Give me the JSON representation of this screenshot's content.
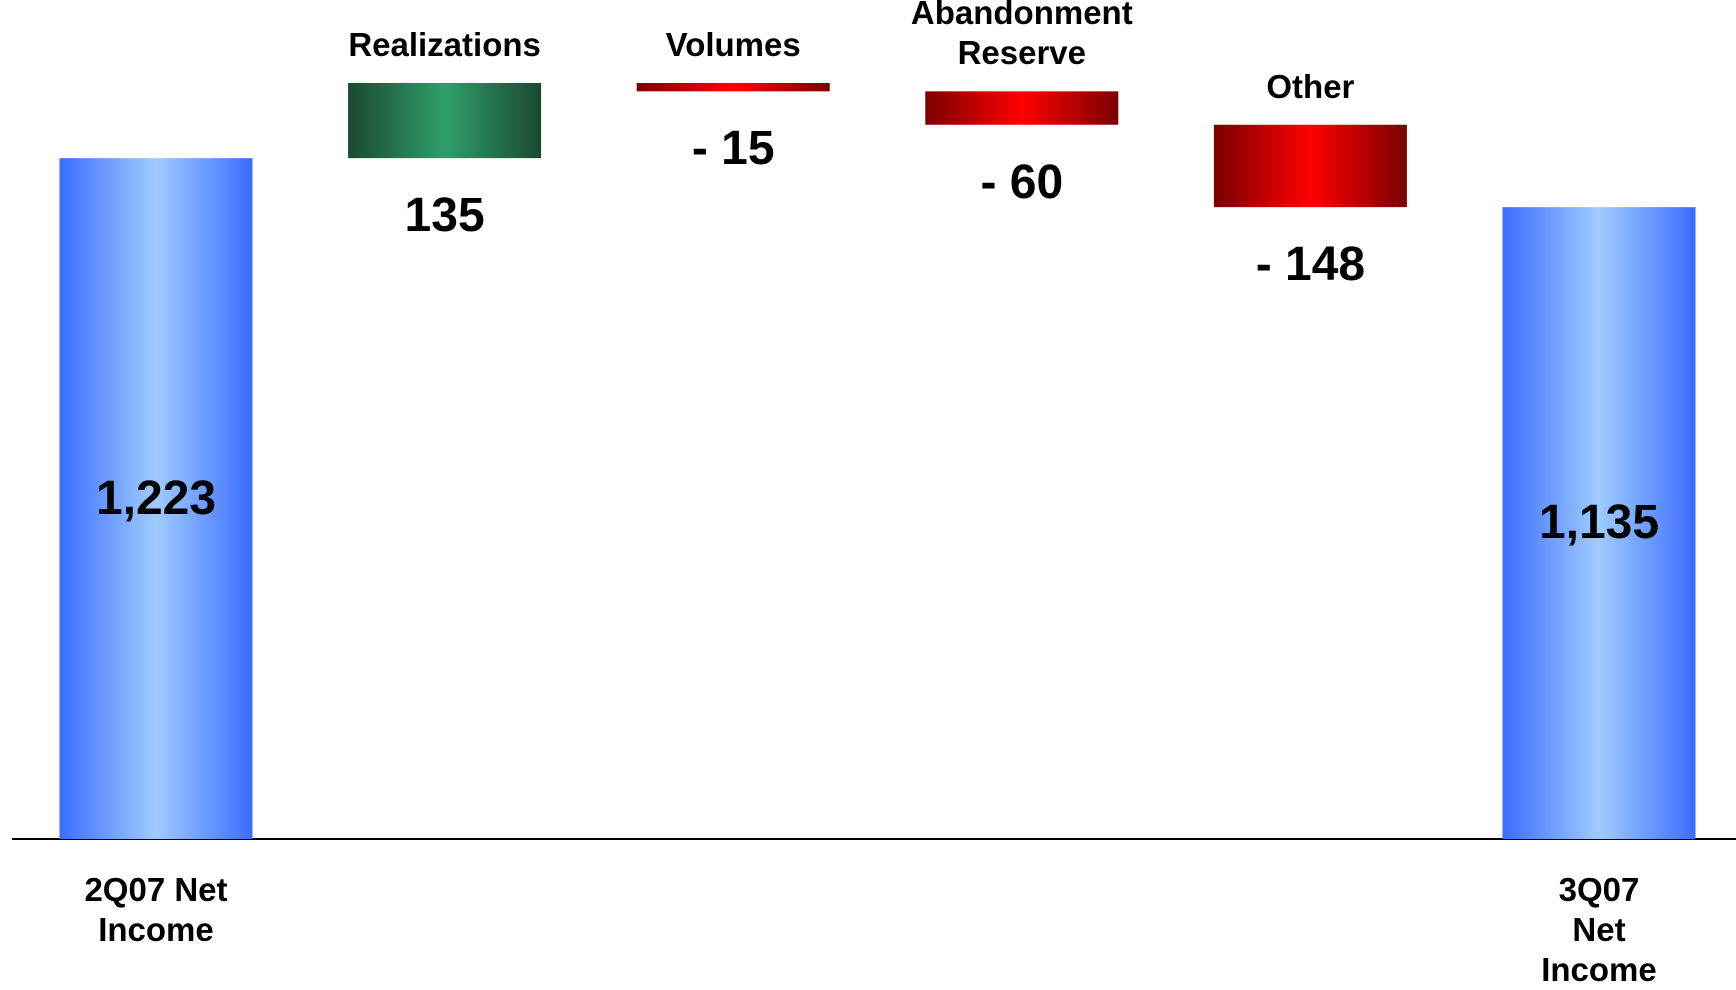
{
  "chart_data": {
    "type": "waterfall",
    "categories": [
      "2Q07 Net Income",
      "Realizations",
      "Volumes",
      "Abandonment Reserve",
      "Other",
      "3Q07 Net Income"
    ],
    "values": [
      1223,
      135,
      -15,
      -60,
      -148,
      1135
    ],
    "value_labels": [
      "1,223",
      "135",
      "- 15",
      "- 60",
      "- 148",
      "1,135"
    ],
    "measures": [
      "total",
      "relative",
      "relative",
      "relative",
      "relative",
      "total"
    ],
    "colors": [
      [
        "#3c6cff",
        "#9fccff"
      ],
      [
        "#1a4a30",
        "#2f9e6a"
      ],
      [
        "#7a0000",
        "#ff0000"
      ],
      [
        "#7a0000",
        "#ff0000"
      ],
      [
        "#7a0000",
        "#ff0000"
      ],
      [
        "#3c6cff",
        "#9fccff"
      ]
    ]
  }
}
